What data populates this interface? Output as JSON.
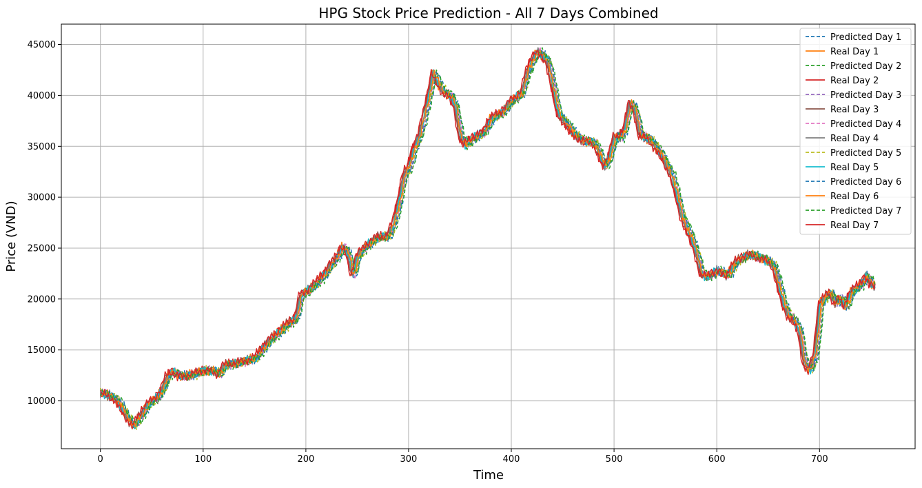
{
  "chart_data": {
    "type": "line",
    "title": "HPG Stock Price Prediction - All 7 Days Combined",
    "xlabel": "Time",
    "ylabel": "Price (VND)",
    "xlim": [
      -38,
      793
    ],
    "ylim": [
      5300,
      47000
    ],
    "xticks": [
      0,
      100,
      200,
      300,
      400,
      500,
      600,
      700
    ],
    "yticks": [
      10000,
      15000,
      20000,
      25000,
      30000,
      35000,
      40000,
      45000
    ],
    "grid": true,
    "legend_position": "top-right",
    "anchors": [
      [
        0,
        10800
      ],
      [
        5,
        10600
      ],
      [
        10,
        10400
      ],
      [
        15,
        10100
      ],
      [
        20,
        9300
      ],
      [
        25,
        8500
      ],
      [
        30,
        7800
      ],
      [
        33,
        7600
      ],
      [
        36,
        8200
      ],
      [
        40,
        8800
      ],
      [
        45,
        9600
      ],
      [
        50,
        10000
      ],
      [
        55,
        10400
      ],
      [
        60,
        11200
      ],
      [
        65,
        12500
      ],
      [
        70,
        12900
      ],
      [
        75,
        12500
      ],
      [
        80,
        12400
      ],
      [
        90,
        12600
      ],
      [
        100,
        13000
      ],
      [
        110,
        12900
      ],
      [
        115,
        12600
      ],
      [
        120,
        13500
      ],
      [
        130,
        13700
      ],
      [
        140,
        13900
      ],
      [
        150,
        14200
      ],
      [
        160,
        15500
      ],
      [
        170,
        16500
      ],
      [
        180,
        17400
      ],
      [
        190,
        18200
      ],
      [
        195,
        20500
      ],
      [
        200,
        20700
      ],
      [
        210,
        21600
      ],
      [
        220,
        22800
      ],
      [
        230,
        24200
      ],
      [
        235,
        25100
      ],
      [
        240,
        24500
      ],
      [
        245,
        22300
      ],
      [
        250,
        24300
      ],
      [
        260,
        25400
      ],
      [
        270,
        26100
      ],
      [
        280,
        26200
      ],
      [
        285,
        27500
      ],
      [
        290,
        29600
      ],
      [
        295,
        32200
      ],
      [
        300,
        33000
      ],
      [
        305,
        35000
      ],
      [
        310,
        36000
      ],
      [
        315,
        38200
      ],
      [
        320,
        40500
      ],
      [
        323,
        42300
      ],
      [
        328,
        41200
      ],
      [
        333,
        40400
      ],
      [
        340,
        39900
      ],
      [
        345,
        38900
      ],
      [
        350,
        35900
      ],
      [
        355,
        35100
      ],
      [
        360,
        35700
      ],
      [
        365,
        36000
      ],
      [
        372,
        36300
      ],
      [
        380,
        37800
      ],
      [
        390,
        38300
      ],
      [
        400,
        39500
      ],
      [
        410,
        40300
      ],
      [
        415,
        42300
      ],
      [
        420,
        43600
      ],
      [
        425,
        44300
      ],
      [
        430,
        43800
      ],
      [
        435,
        43300
      ],
      [
        440,
        40800
      ],
      [
        445,
        38200
      ],
      [
        450,
        37600
      ],
      [
        460,
        36200
      ],
      [
        470,
        35500
      ],
      [
        480,
        35400
      ],
      [
        490,
        33000
      ],
      [
        495,
        34000
      ],
      [
        500,
        36000
      ],
      [
        505,
        35800
      ],
      [
        510,
        36800
      ],
      [
        515,
        39300
      ],
      [
        520,
        38500
      ],
      [
        525,
        36100
      ],
      [
        535,
        35600
      ],
      [
        545,
        34200
      ],
      [
        555,
        32300
      ],
      [
        560,
        30400
      ],
      [
        565,
        28200
      ],
      [
        575,
        25800
      ],
      [
        580,
        24300
      ],
      [
        585,
        22400
      ],
      [
        590,
        22200
      ],
      [
        600,
        22800
      ],
      [
        610,
        22300
      ],
      [
        615,
        23200
      ],
      [
        620,
        23800
      ],
      [
        630,
        24400
      ],
      [
        640,
        24100
      ],
      [
        650,
        23700
      ],
      [
        655,
        23200
      ],
      [
        660,
        21200
      ],
      [
        665,
        19300
      ],
      [
        670,
        18300
      ],
      [
        675,
        17800
      ],
      [
        680,
        16800
      ],
      [
        685,
        13600
      ],
      [
        690,
        13000
      ],
      [
        695,
        14500
      ],
      [
        700,
        19600
      ],
      [
        705,
        20200
      ],
      [
        710,
        20600
      ],
      [
        715,
        19600
      ],
      [
        720,
        20100
      ],
      [
        725,
        19200
      ],
      [
        730,
        20700
      ],
      [
        740,
        21500
      ],
      [
        745,
        22300
      ],
      [
        750,
        21400
      ],
      [
        754,
        21300
      ]
    ],
    "series": [
      {
        "name": "Predicted Day 1",
        "color": "#1f77b4",
        "dashed": true,
        "offset": 1
      },
      {
        "name": "Real Day 1",
        "color": "#ff7f0e",
        "dashed": false,
        "offset": 0
      },
      {
        "name": "Predicted Day 2",
        "color": "#2ca02c",
        "dashed": true,
        "offset": 2
      },
      {
        "name": "Real Day 2",
        "color": "#d62728",
        "dashed": false,
        "offset": -1
      },
      {
        "name": "Predicted Day 3",
        "color": "#9467bd",
        "dashed": true,
        "offset": 2.5
      },
      {
        "name": "Real Day 3",
        "color": "#8c564b",
        "dashed": false,
        "offset": -0.5
      },
      {
        "name": "Predicted Day 4",
        "color": "#e377c2",
        "dashed": true,
        "offset": 3
      },
      {
        "name": "Real Day 4",
        "color": "#7f7f7f",
        "dashed": false,
        "offset": 0.5
      },
      {
        "name": "Predicted Day 5",
        "color": "#bcbd22",
        "dashed": true,
        "offset": 3.5
      },
      {
        "name": "Real Day 5",
        "color": "#17becf",
        "dashed": false,
        "offset": 1
      },
      {
        "name": "Predicted Day 6",
        "color": "#1f77b4",
        "dashed": true,
        "offset": 4
      },
      {
        "name": "Real Day 6",
        "color": "#ff7f0e",
        "dashed": false,
        "offset": 1.5
      },
      {
        "name": "Predicted Day 7",
        "color": "#2ca02c",
        "dashed": true,
        "offset": 4.5
      },
      {
        "name": "Real Day 7",
        "color": "#d62728",
        "dashed": false,
        "offset": -1.5
      }
    ]
  }
}
